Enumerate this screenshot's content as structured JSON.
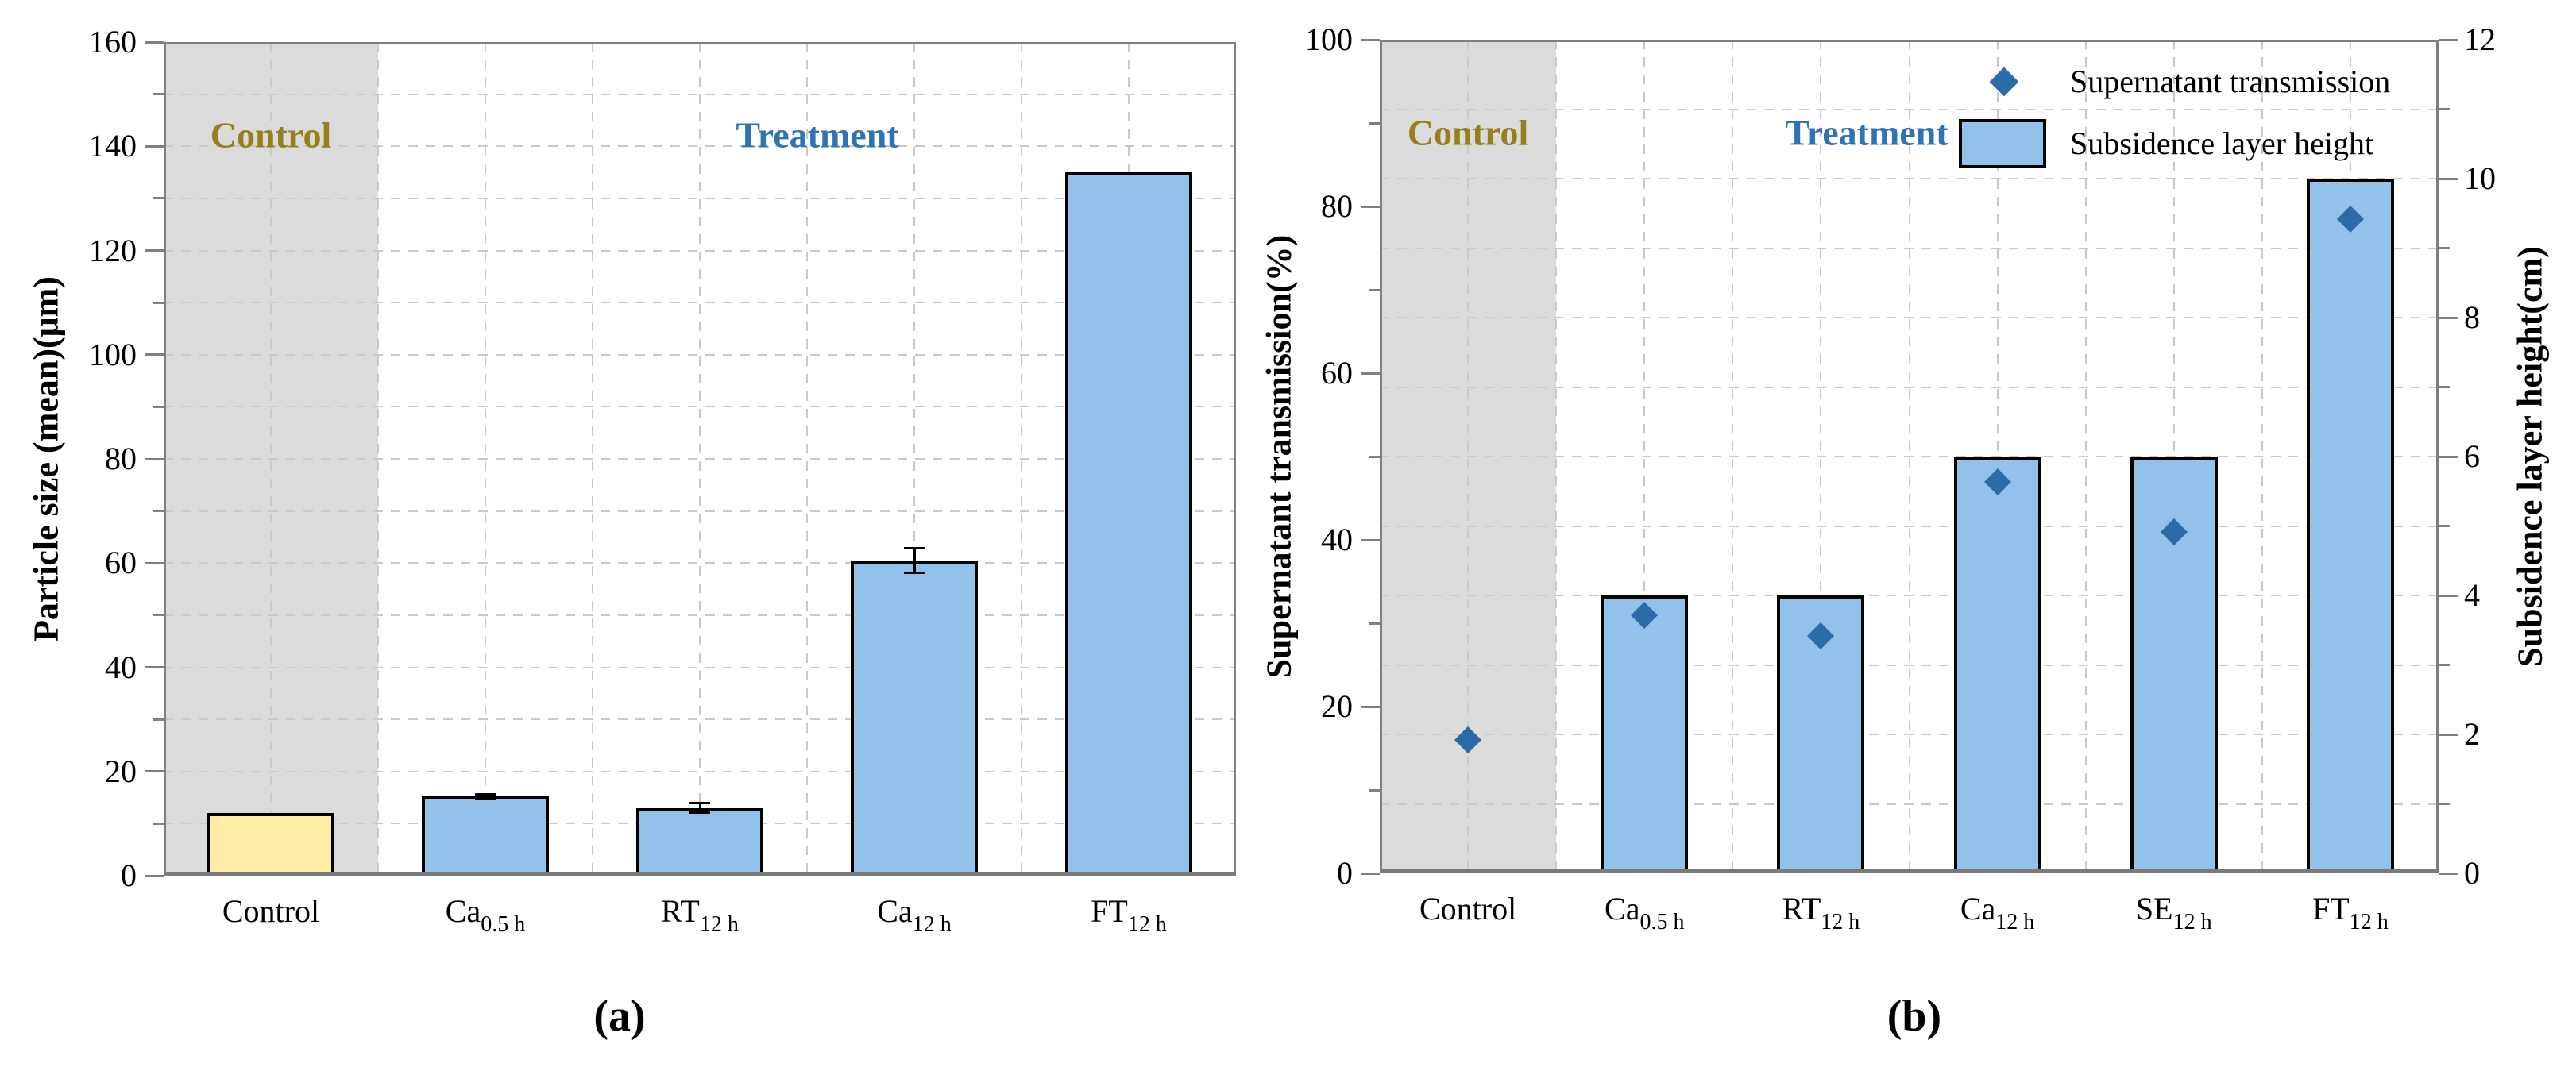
{
  "figure": {
    "panel_a_caption": "(a)",
    "panel_b_caption": "(b)"
  },
  "colors": {
    "bar_blue": "#92c1e9",
    "bar_yellow": "#ffeda6",
    "bar_border": "#000000",
    "diamond_blue": "#2b6ca8",
    "control_band_gray": "#dbdbdb",
    "control_text_olive": "#95801b",
    "treatment_text_blue": "#2e74b5",
    "frame_gray": "#7f7f7f",
    "grid_gray": "#c9c9c9"
  },
  "chart_data": [
    {
      "type": "bar",
      "panel": "a",
      "ylabel": "Particle size (mean)(μm)",
      "ylim": [
        0,
        160
      ],
      "ytick_step": 20,
      "yminor_step": 10,
      "grid": "dashed, every 10 units horizontal, half-category vertical",
      "categories": [
        {
          "main": "Control",
          "sub": ""
        },
        {
          "main": "Ca",
          "sub": "0.5 h"
        },
        {
          "main": "RT",
          "sub": "12 h"
        },
        {
          "main": "Ca",
          "sub": "12 h"
        },
        {
          "main": "FT",
          "sub": "12 h"
        }
      ],
      "values": [
        12,
        15.2,
        13,
        60.5,
        135
      ],
      "errors": [
        0,
        0.5,
        1,
        2.5,
        0
      ],
      "bar_colors": [
        "#ffeda6",
        "#92c1e9",
        "#92c1e9",
        "#92c1e9",
        "#92c1e9"
      ],
      "region_labels": {
        "control": "Control",
        "treatment": "Treatment"
      },
      "caption": "(a)"
    },
    {
      "type": "bar+scatter",
      "panel": "b",
      "ylabel_left": "Supernatant transmission(%)",
      "ylabel_right": "Subsidence layer height(cm)",
      "ylim_left": [
        0,
        100
      ],
      "ytick_step_left": 20,
      "yminor_step_left": 10,
      "ylim_right": [
        0,
        12
      ],
      "ytick_step_right": 2,
      "yminor_step_right": 1,
      "grid": "dashed, every 1 cm horizontal, half-category vertical",
      "categories": [
        {
          "main": "Control",
          "sub": ""
        },
        {
          "main": "Ca",
          "sub": "0.5 h"
        },
        {
          "main": "RT",
          "sub": "12 h"
        },
        {
          "main": "Ca",
          "sub": "12 h"
        },
        {
          "main": "SE",
          "sub": "12 h"
        },
        {
          "main": "FT",
          "sub": "12 h"
        }
      ],
      "series": [
        {
          "name": "Supernatant transmission",
          "type": "scatter",
          "marker": "diamond",
          "axis": "left",
          "values": [
            16,
            31,
            28.5,
            47,
            41,
            78.5
          ]
        },
        {
          "name": "Subsidence layer height",
          "type": "bar",
          "axis": "right",
          "values": [
            0,
            4,
            4,
            6,
            6,
            10
          ]
        }
      ],
      "region_labels": {
        "control": "Control",
        "treatment": "Treatment"
      },
      "legend_position": "top-right",
      "caption": "(b)"
    }
  ]
}
